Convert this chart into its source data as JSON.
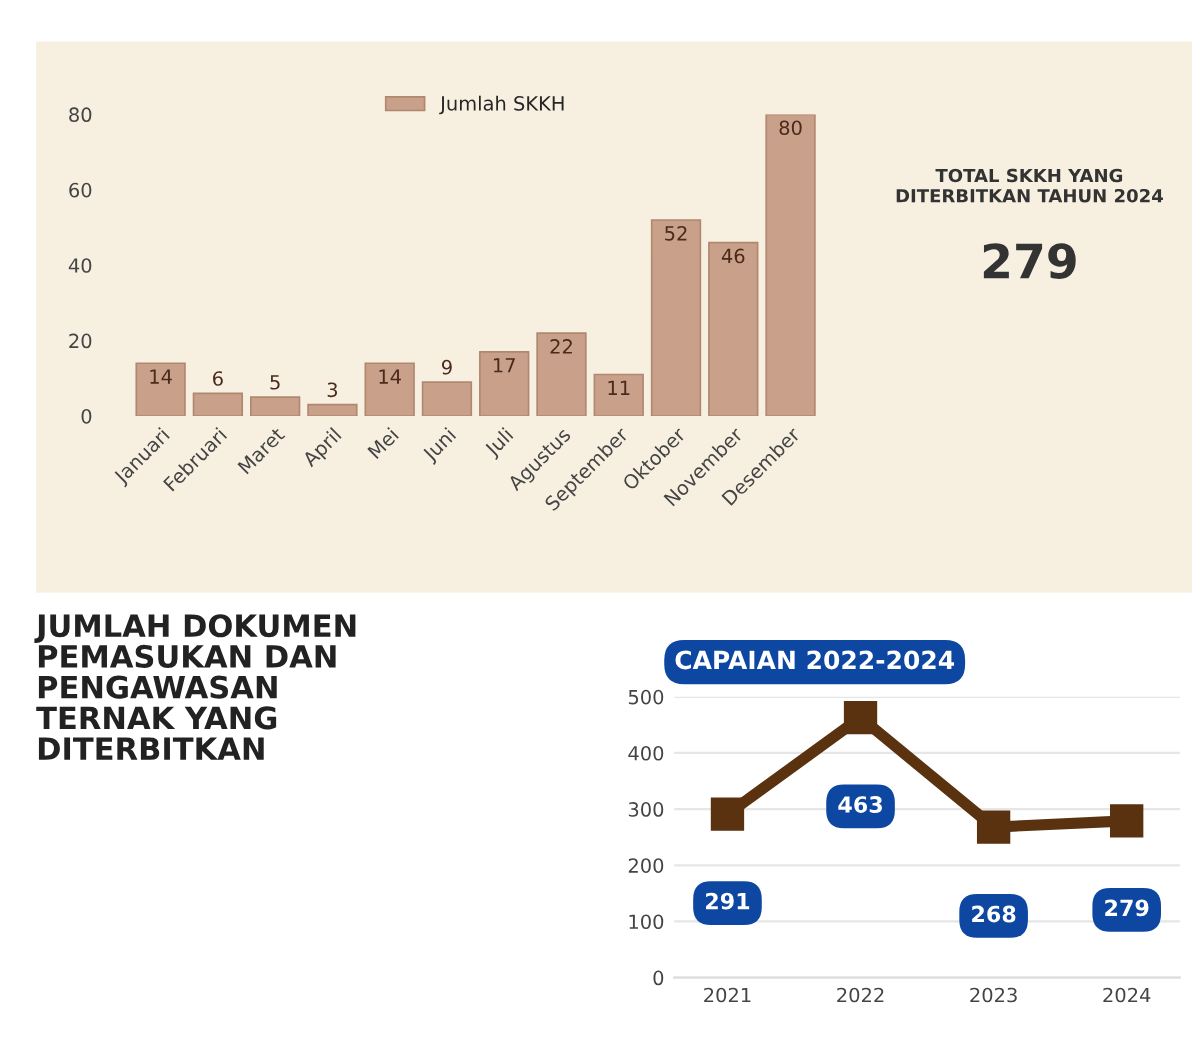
{
  "chart_data": [
    {
      "type": "bar",
      "categories": [
        "Januari",
        "Februari",
        "Maret",
        "April",
        "Mei",
        "Juni",
        "Juli",
        "Agustus",
        "September",
        "Oktober",
        "November",
        "Desember"
      ],
      "series": [
        {
          "name": "Jumlah SKKH",
          "color": "#c9a08a",
          "values": [
            14,
            6,
            5,
            3,
            14,
            9,
            17,
            22,
            11,
            52,
            46,
            80
          ]
        }
      ],
      "ylim": [
        0,
        80
      ],
      "yticks": [
        0,
        20,
        40,
        60,
        80
      ],
      "data_labels": true,
      "legend": "top",
      "grid": false,
      "annotations": [
        "TOTAL SKKH YANG\nDITERBITKAN TAHUN 2024",
        "279"
      ]
    },
    {
      "type": "line",
      "title": "CAPAIAN 2022-2024",
      "categories": [
        "2021",
        "2022",
        "2023",
        "2024"
      ],
      "series": [
        {
          "color": "#5a3210",
          "values": [
            291,
            463,
            268,
            279
          ]
        }
      ],
      "ylim": [
        0,
        500
      ],
      "yticks": [
        0,
        100,
        200,
        300,
        400,
        500
      ],
      "marker": "square",
      "data_labels": true,
      "grid": "y",
      "annotations": [
        "JUMLAH DOKUMEN\nPEMASUKAN DAN\nPENGAWASAN\nTERNAK YANG\nDITERBITKAN"
      ]
    }
  ]
}
